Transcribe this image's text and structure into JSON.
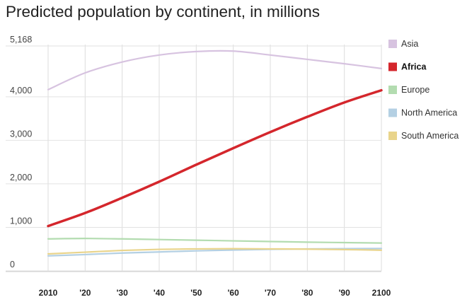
{
  "chart_data": {
    "type": "line",
    "title": "Predicted population by continent, in millions",
    "xlabel": "",
    "ylabel": "",
    "x": [
      2010,
      2020,
      2030,
      2040,
      2050,
      2060,
      2070,
      2080,
      2090,
      2100
    ],
    "x_tick_labels": [
      "2010",
      "'20",
      "'30",
      "'40",
      "'50",
      "'60",
      "'70",
      "'80",
      "'90",
      "2100"
    ],
    "y_ticks": [
      0,
      1000,
      2000,
      3000,
      4000,
      5168
    ],
    "y_tick_labels": [
      "0",
      "1,000",
      "2,000",
      "3,000",
      "4,000",
      "5,168"
    ],
    "ylim": [
      0,
      5168
    ],
    "xlim": [
      2010,
      2100
    ],
    "grid": true,
    "legend_position": "right",
    "series": [
      {
        "name": "Asia",
        "color": "#d7c3e0",
        "highlight": false,
        "values": [
          4165,
          4550,
          4800,
          4960,
          5040,
          5050,
          4960,
          4860,
          4760,
          4650
        ]
      },
      {
        "name": "Africa",
        "color": "#d4262c",
        "highlight": true,
        "values": [
          1030,
          1330,
          1680,
          2050,
          2440,
          2820,
          3190,
          3540,
          3870,
          4150
        ]
      },
      {
        "name": "Europe",
        "color": "#b3dcb0",
        "highlight": false,
        "values": [
          735,
          745,
          735,
          720,
          705,
          690,
          675,
          660,
          650,
          640
        ]
      },
      {
        "name": "North America",
        "color": "#b4d0e3",
        "highlight": false,
        "values": [
          345,
          375,
          410,
          435,
          460,
          480,
          495,
          505,
          510,
          515
        ]
      },
      {
        "name": "South America",
        "color": "#e9d48b",
        "highlight": false,
        "values": [
          390,
          430,
          470,
          495,
          505,
          510,
          505,
          500,
          490,
          475
        ]
      }
    ]
  }
}
